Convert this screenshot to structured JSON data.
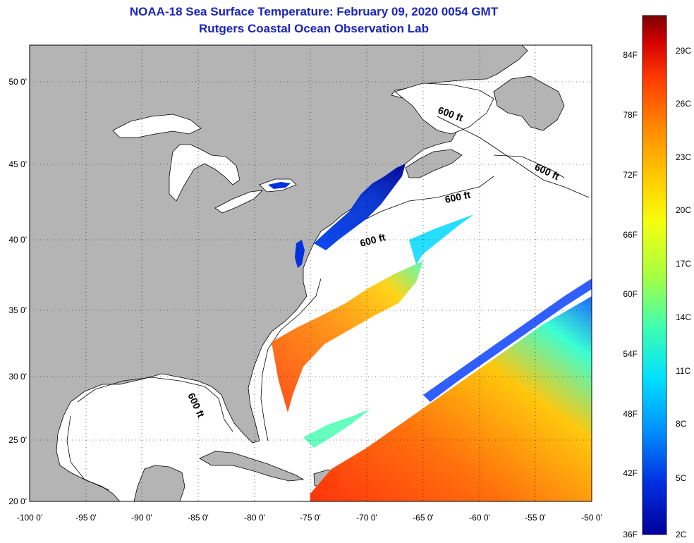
{
  "title": {
    "line1": "NOAA-18 Sea Surface Temperature:  February 09, 2020 0054 GMT",
    "line2": "Rutgers Coastal Ocean Observation Lab"
  },
  "map": {
    "lat_labels": [
      "50 0'",
      "45 0'",
      "40 0'",
      "35 0'",
      "30 0'",
      "25 0'",
      "20 0'"
    ],
    "lon_labels": [
      "-100 0'",
      "-95 0'",
      "-90 0'",
      "-85 0'",
      "-80 0'",
      "-75 0'",
      "-70 0'",
      "-65 0'",
      "-60 0'",
      "-55 0'",
      "-50 0'"
    ],
    "isobath_label": "600 ft",
    "land_color": "#b4b4b4",
    "ocean_color": "#ffffff"
  },
  "colorbar": {
    "fahrenheit": [
      "84F",
      "78F",
      "72F",
      "66F",
      "60F",
      "54F",
      "48F",
      "42F",
      "36F"
    ],
    "celsius": [
      "29C",
      "26C",
      "23C",
      "20C",
      "17C",
      "14C",
      "11C",
      "8C",
      "5C",
      "2C"
    ],
    "colors": [
      "#7a0000",
      "#d40000",
      "#ff3a00",
      "#ff8c00",
      "#ffd000",
      "#f4ff10",
      "#a8ff40",
      "#40ffb0",
      "#00e0ff",
      "#0090ff",
      "#0030e0",
      "#00009a"
    ]
  }
}
